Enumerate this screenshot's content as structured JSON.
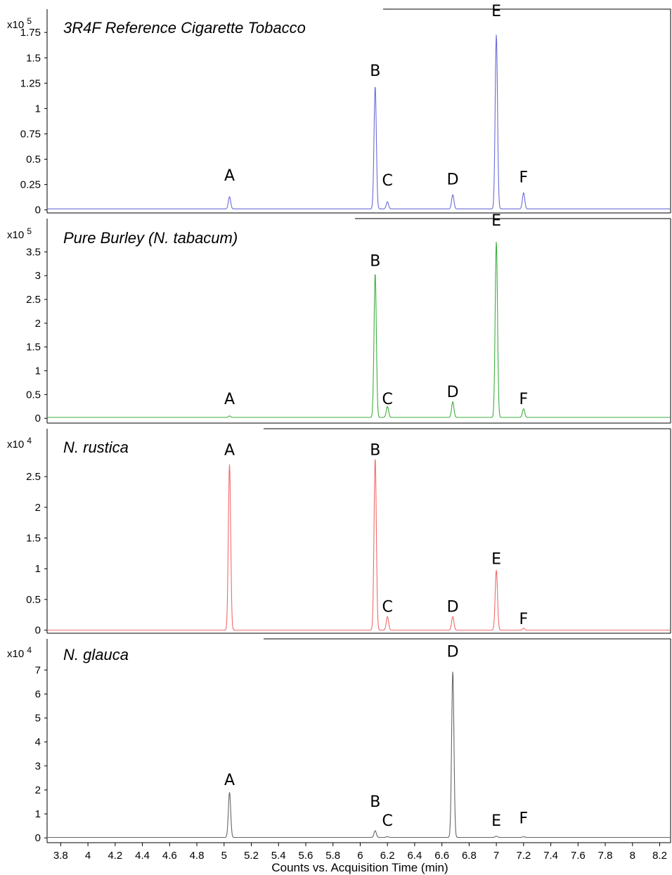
{
  "chart_data": {
    "type": "line",
    "xlabel": "Counts vs. Acquisition Time (min)",
    "xlim": [
      3.7,
      8.28
    ],
    "x_ticks": [
      "3.8",
      "4",
      "4.2",
      "4.4",
      "4.6",
      "4.8",
      "5",
      "5.2",
      "5.4",
      "5.6",
      "5.8",
      "6",
      "6.2",
      "6.4",
      "6.6",
      "6.8",
      "7",
      "7.2",
      "7.4",
      "7.6",
      "7.8",
      "8",
      "8.2"
    ],
    "panels": [
      {
        "title": "3R4F Reference Cigarette Tobacco",
        "multiplier": "x10",
        "exponent": "5",
        "color": "#6b6bd6",
        "ylim": [
          -0.03,
          1.98
        ],
        "y_ticks": [
          "0",
          "0.25",
          "0.5",
          "0.75",
          "1",
          "1.25",
          "1.5",
          "1.75"
        ],
        "baseline": 0.01,
        "peaks": [
          {
            "label": "A",
            "x": 5.04,
            "y": 0.13,
            "label_y": 0.29
          },
          {
            "label": "B",
            "x": 6.11,
            "y": 1.22,
            "label_y": 1.32
          },
          {
            "label": "C",
            "x": 6.2,
            "y": 0.08,
            "label_y": 0.24
          },
          {
            "label": "D",
            "x": 6.68,
            "y": 0.15,
            "label_y": 0.25
          },
          {
            "label": "E",
            "x": 7.0,
            "y": 1.73,
            "label_y": 1.91
          },
          {
            "label": "F",
            "x": 7.2,
            "y": 0.17,
            "label_y": 0.27
          }
        ]
      },
      {
        "title": "Pure Burley (N. tabacum)",
        "multiplier": "x10",
        "exponent": "5",
        "color": "#3fae3f",
        "ylim": [
          -0.1,
          4.2
        ],
        "y_ticks": [
          "0",
          "0.5",
          "1",
          "1.5",
          "2",
          "2.5",
          "3",
          "3.5"
        ],
        "baseline": 0.02,
        "peaks": [
          {
            "label": "A",
            "x": 5.04,
            "y": 0.05,
            "label_y": 0.3
          },
          {
            "label": "B",
            "x": 6.11,
            "y": 3.05,
            "label_y": 3.2
          },
          {
            "label": "C",
            "x": 6.2,
            "y": 0.25,
            "label_y": 0.3
          },
          {
            "label": "D",
            "x": 6.68,
            "y": 0.35,
            "label_y": 0.45
          },
          {
            "label": "E",
            "x": 7.0,
            "y": 3.72,
            "label_y": 4.05
          },
          {
            "label": "F",
            "x": 7.2,
            "y": 0.2,
            "label_y": 0.3
          }
        ]
      },
      {
        "title": "N. rustica",
        "multiplier": "x10",
        "exponent": "4",
        "color": "#ef6b6b",
        "ylim": [
          -0.05,
          3.28
        ],
        "y_ticks": [
          "0",
          "0.5",
          "1",
          "1.5",
          "2",
          "2.5"
        ],
        "baseline": 0.0,
        "peaks": [
          {
            "label": "A",
            "x": 5.04,
            "y": 2.7,
            "label_y": 2.85
          },
          {
            "label": "B",
            "x": 6.11,
            "y": 2.8,
            "label_y": 2.85
          },
          {
            "label": "C",
            "x": 6.2,
            "y": 0.22,
            "label_y": 0.3
          },
          {
            "label": "D",
            "x": 6.68,
            "y": 0.22,
            "label_y": 0.3
          },
          {
            "label": "E",
            "x": 7.0,
            "y": 0.98,
            "label_y": 1.08
          },
          {
            "label": "F",
            "x": 7.2,
            "y": 0.03,
            "label_y": 0.1
          }
        ]
      },
      {
        "title": "N. glauca",
        "multiplier": "x10",
        "exponent": "4",
        "color": "#666666",
        "ylim": [
          -0.2,
          8.3
        ],
        "y_ticks": [
          "0",
          "1",
          "2",
          "3",
          "4",
          "5",
          "6",
          "7"
        ],
        "baseline": 0.02,
        "peaks": [
          {
            "label": "A",
            "x": 5.04,
            "y": 1.9,
            "label_y": 2.2
          },
          {
            "label": "B",
            "x": 6.11,
            "y": 0.3,
            "label_y": 1.3
          },
          {
            "label": "C",
            "x": 6.2,
            "y": 0.05,
            "label_y": 0.5
          },
          {
            "label": "D",
            "x": 6.68,
            "y": 6.95,
            "label_y": 7.55
          },
          {
            "label": "E",
            "x": 7.0,
            "y": 0.07,
            "label_y": 0.5
          },
          {
            "label": "F",
            "x": 7.2,
            "y": 0.05,
            "label_y": 0.6
          }
        ]
      }
    ]
  }
}
